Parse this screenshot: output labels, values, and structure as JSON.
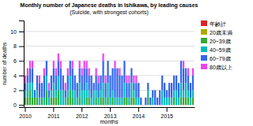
{
  "chart_data": {
    "type": "bar",
    "stacked": true,
    "title": "Monthly number of Japanese deaths in Ishikawa, by leading causes",
    "subtitle": "(Suicide, with strongest cohorts)",
    "x_label": "months",
    "y_label": "number of deaths",
    "categories": [
      "2010",
      null,
      null,
      null,
      null,
      null,
      null,
      null,
      null,
      null,
      null,
      null,
      "2011",
      null,
      null,
      null,
      null,
      null,
      null,
      null,
      null,
      null,
      null,
      null,
      "2012",
      null,
      null,
      null,
      null,
      null,
      null,
      null,
      null,
      null,
      null,
      null,
      "2013",
      null,
      null,
      null,
      null,
      null,
      null,
      null,
      null,
      null,
      null,
      null,
      "2014",
      null,
      null,
      null,
      null,
      null,
      null,
      null,
      null,
      null,
      null,
      null,
      "2015",
      null,
      null,
      null,
      null,
      null,
      null,
      null,
      null,
      null,
      null,
      null
    ],
    "ylim": [
      -0.3,
      11.5
    ],
    "yticks": [
      0,
      2,
      4,
      6,
      8,
      10
    ],
    "grid": true,
    "legend": "right",
    "series": [
      {
        "name": "年齢計",
        "color": "#dd2222",
        "type": "line",
        "values": [
          null,
          null,
          null,
          null,
          null,
          null,
          null,
          null,
          null,
          null,
          null,
          null,
          null,
          null,
          null,
          null,
          null,
          null,
          null,
          null,
          null,
          null,
          null,
          null,
          null,
          null,
          null,
          null,
          null,
          null,
          null,
          null,
          null,
          null,
          null,
          null,
          null,
          null,
          null,
          null,
          null,
          null,
          null,
          null,
          null,
          null,
          null,
          null,
          null,
          null,
          null,
          null,
          null,
          null,
          null,
          null,
          null,
          null,
          null,
          null,
          null,
          null,
          null,
          null,
          null,
          null,
          null,
          null,
          null,
          null,
          null,
          null
        ]
      },
      {
        "name": "20歳未満",
        "color": "#aaaa00",
        "type": "bar",
        "values": [
          0,
          0,
          0,
          0,
          0,
          0,
          0,
          0,
          0,
          0,
          0,
          0,
          0,
          0,
          0,
          0,
          0,
          0,
          0,
          0,
          0,
          0,
          0,
          0,
          0,
          0,
          0,
          0,
          0,
          0,
          0,
          0,
          0,
          0,
          0,
          0,
          0,
          0,
          0,
          0,
          0,
          0,
          0,
          0,
          0,
          0,
          0,
          0,
          0,
          0,
          0,
          0,
          0,
          0,
          0,
          0,
          0,
          0,
          0,
          0,
          0,
          0,
          0,
          0,
          0,
          0,
          0,
          0,
          0,
          0,
          0,
          0
        ]
      },
      {
        "name": "20~39歳",
        "color": "#33aa33",
        "type": "bar",
        "values": [
          1,
          1,
          2,
          1,
          1,
          1,
          0,
          1,
          0,
          2,
          0,
          1,
          1,
          1,
          2,
          0,
          0,
          0,
          1,
          2,
          1,
          0,
          0,
          1,
          0,
          0,
          1,
          1,
          0,
          0,
          1,
          0,
          1,
          1,
          0,
          1,
          0,
          1,
          0,
          0,
          0,
          0,
          1,
          1,
          0,
          1,
          1,
          0,
          0,
          0,
          0,
          0,
          1,
          0,
          0,
          0,
          0,
          0,
          0,
          0,
          0,
          0,
          0,
          1,
          0,
          0,
          1,
          1,
          1,
          1,
          0,
          1
        ]
      },
      {
        "name": "40~59歳",
        "color": "#00bbbb",
        "type": "bar",
        "values": [
          1,
          2,
          1,
          2,
          0,
          1,
          1,
          0,
          1,
          2,
          1,
          1,
          2,
          1,
          2,
          2,
          2,
          1,
          1,
          2,
          1,
          2,
          1,
          2,
          2,
          2,
          2,
          1,
          1,
          2,
          1,
          1,
          1,
          2,
          1,
          2,
          1,
          1,
          1,
          1,
          1,
          1,
          2,
          0,
          1,
          2,
          1,
          1,
          1,
          0,
          0,
          0,
          1,
          0,
          1,
          0,
          0,
          0,
          2,
          1,
          1,
          1,
          1,
          1,
          2,
          1,
          2,
          1,
          2,
          1,
          1,
          1
        ]
      },
      {
        "name": "60~79歳",
        "color": "#3366ee",
        "type": "bar",
        "values": [
          1,
          1,
          2,
          2,
          1,
          2,
          2,
          2,
          3,
          2,
          1,
          2,
          2,
          2,
          2,
          3,
          2,
          1,
          2,
          2,
          3,
          2,
          2,
          2,
          2,
          3,
          2,
          2,
          3,
          1,
          2,
          2,
          2,
          3,
          2,
          3,
          3,
          3,
          4,
          4,
          3,
          3,
          3,
          2,
          2,
          2,
          1,
          2,
          2,
          1,
          0,
          1,
          1,
          1,
          1,
          2,
          1,
          2,
          2,
          2,
          1,
          2,
          2,
          2,
          2,
          2,
          3,
          3,
          2,
          2,
          2,
          2
        ]
      },
      {
        "name": "80歳以上",
        "color": "#ee44ee",
        "type": "bar",
        "values": [
          1,
          1,
          1,
          1,
          0,
          0,
          1,
          0,
          1,
          0,
          1,
          0,
          1,
          1,
          1,
          1,
          0,
          1,
          1,
          0,
          1,
          0,
          0,
          1,
          1,
          1,
          1,
          1,
          0,
          0,
          1,
          1,
          0,
          1,
          1,
          0,
          0,
          0,
          1,
          0,
          1,
          0,
          0,
          1,
          1,
          0,
          1,
          1,
          0,
          0,
          0,
          0,
          0,
          0,
          0,
          0,
          0,
          0,
          0,
          0,
          0,
          0,
          0,
          0,
          0,
          0,
          0,
          1,
          0,
          1,
          0,
          1
        ]
      }
    ]
  }
}
